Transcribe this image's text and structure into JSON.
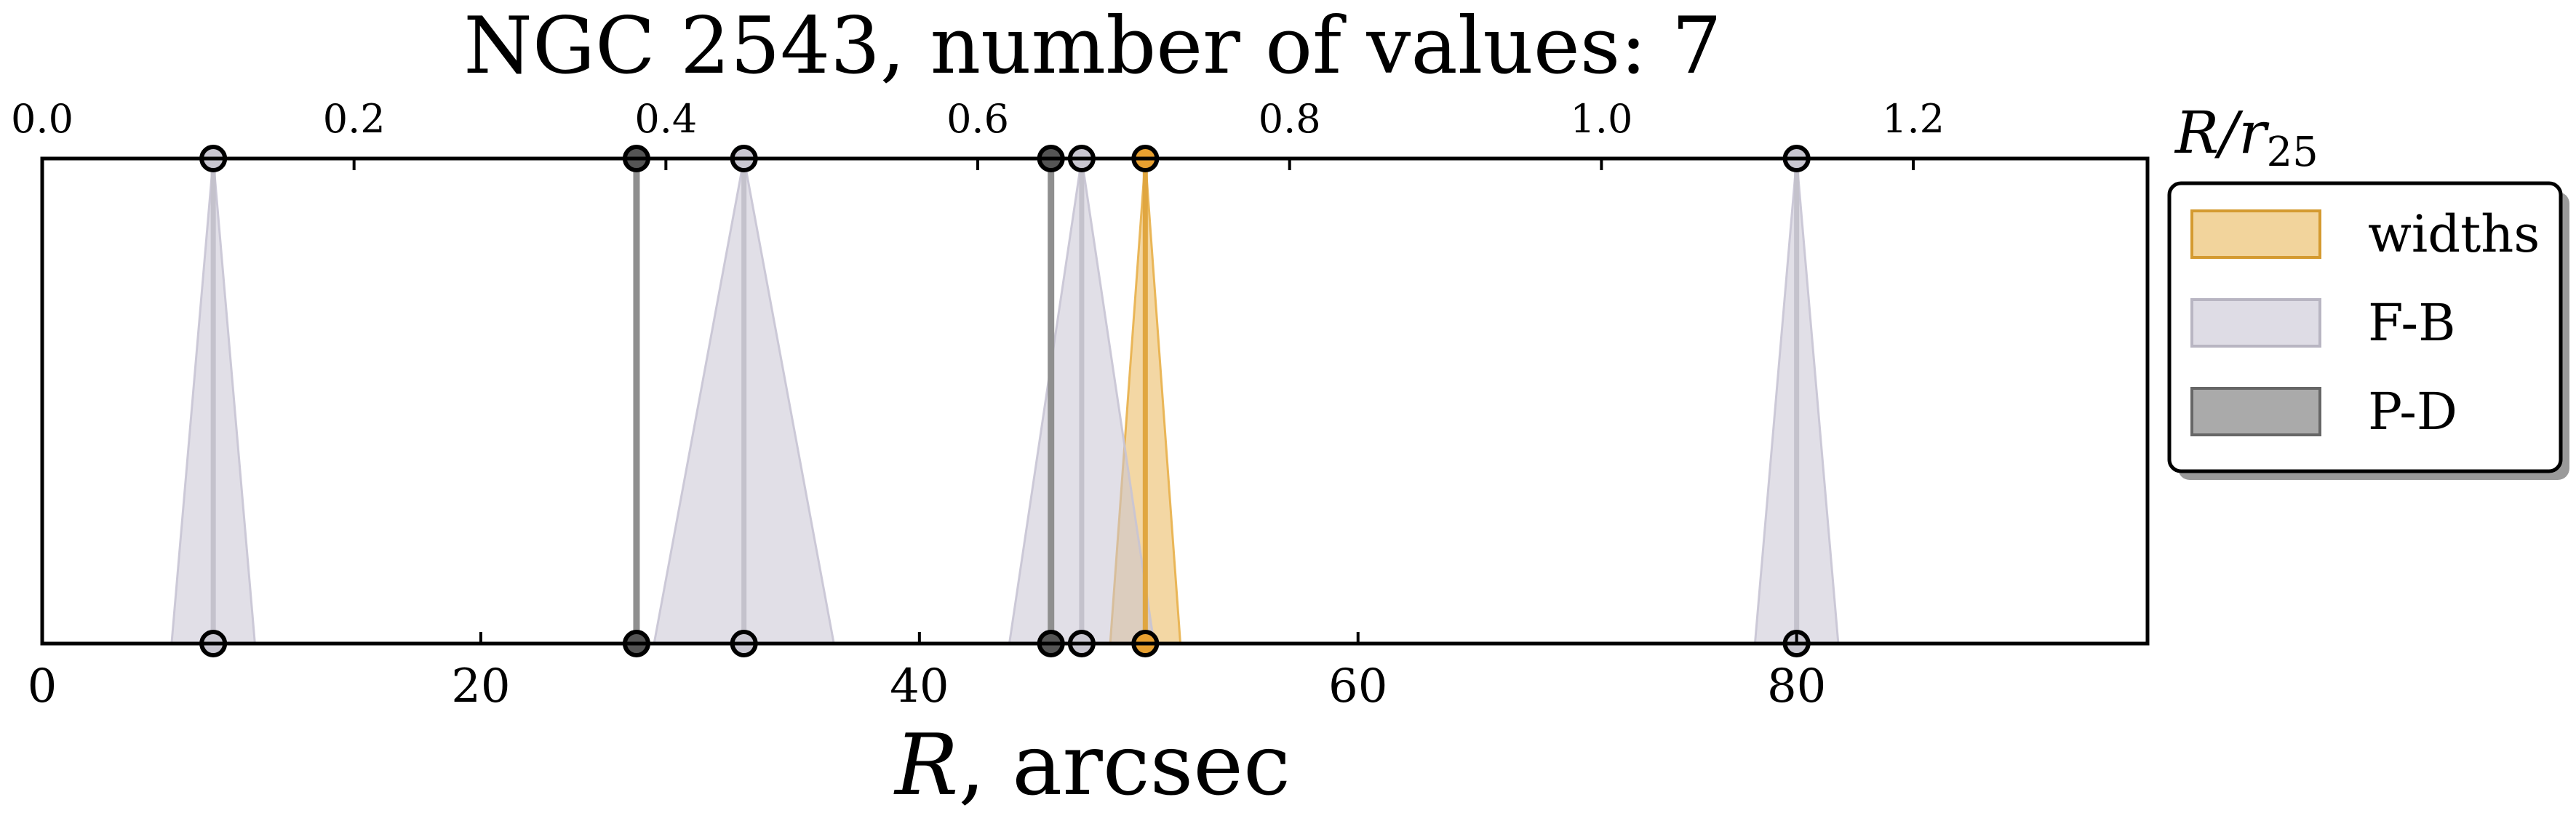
{
  "chart_data": {
    "type": "scatter",
    "title": "NGC 2543, number of values: 7",
    "xlabel_italic": "R",
    "xlabel_rest": ", arcsec",
    "xlim": [
      0,
      96
    ],
    "x_ticks": [
      0,
      20,
      40,
      60,
      80
    ],
    "x_tick_labels": [
      "0",
      "20",
      "40",
      "60",
      "80"
    ],
    "top_axis": {
      "label_main": "R/r",
      "label_sub": "25",
      "ticks": [
        0.0,
        0.2,
        0.4,
        0.6,
        0.8,
        1.0,
        1.2
      ],
      "tick_labels": [
        "0.0",
        "0.2",
        "0.4",
        "0.6",
        "0.8",
        "1.0",
        "1.2"
      ],
      "arcsec_per_unit": 71.1
    },
    "legend": {
      "position": "right",
      "entries": [
        "widths",
        "F-B",
        "P-D"
      ]
    },
    "series": [
      {
        "name": "widths",
        "color": "#e8b04a",
        "edge": "#d4901a",
        "values": [
          {
            "x": 50.3,
            "w": 1.6
          }
        ]
      },
      {
        "name": "F-B",
        "color": "#c8c4d4",
        "edge": "#a9a7b3",
        "values": [
          {
            "x": 7.8,
            "w": 1.9
          },
          {
            "x": 32.0,
            "w": 4.1
          },
          {
            "x": 47.4,
            "w": 3.3
          },
          {
            "x": 80.0,
            "w": 1.9
          }
        ]
      },
      {
        "name": "P-D",
        "color": "#8e8e8e",
        "edge": "#555555",
        "values": [
          {
            "x": 27.1,
            "w": 0
          },
          {
            "x": 46.0,
            "w": 0
          }
        ]
      }
    ]
  }
}
